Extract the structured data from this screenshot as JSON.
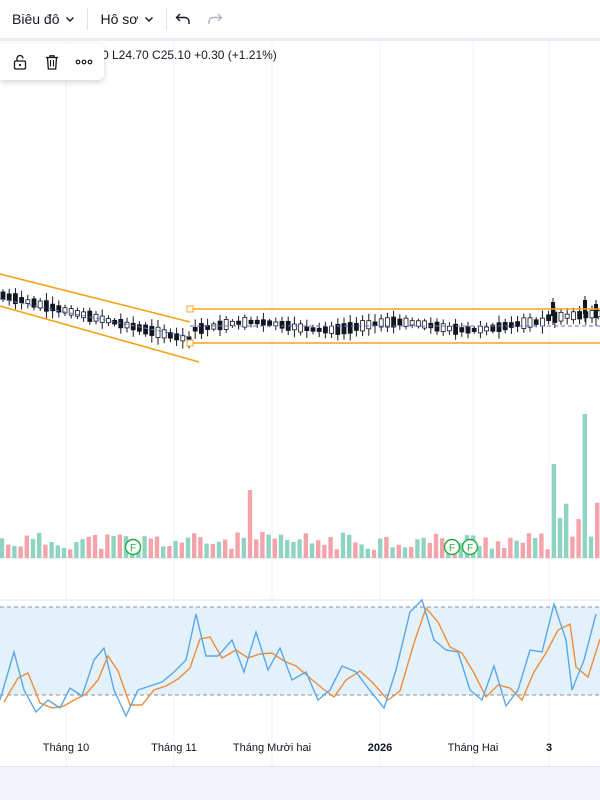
{
  "toolbar": {
    "chart_menu_label": "Biêu đô",
    "profile_menu_label": "Hô sơ"
  },
  "legend": {
    "text": "0  L24.70  C25.10  +0.30 (+1.21%)"
  },
  "xaxis": {
    "labels": [
      "Tháng 10",
      "Tháng 11",
      "Tháng Mười hai",
      "2026",
      "Tháng Hai",
      "3"
    ]
  },
  "event_markers": [
    "F",
    "F",
    "F"
  ],
  "colors": {
    "up": "#26a69a",
    "down": "#ef5350",
    "volume_up": "#8fd3c3",
    "volume_down": "#f4a3ab",
    "trendline": "#f7a21b",
    "stoch_k": "#5aa7e8",
    "stoch_d": "#f08c3c",
    "stoch_band": "#e3f1fb",
    "marker": "#22ab3b"
  }
}
